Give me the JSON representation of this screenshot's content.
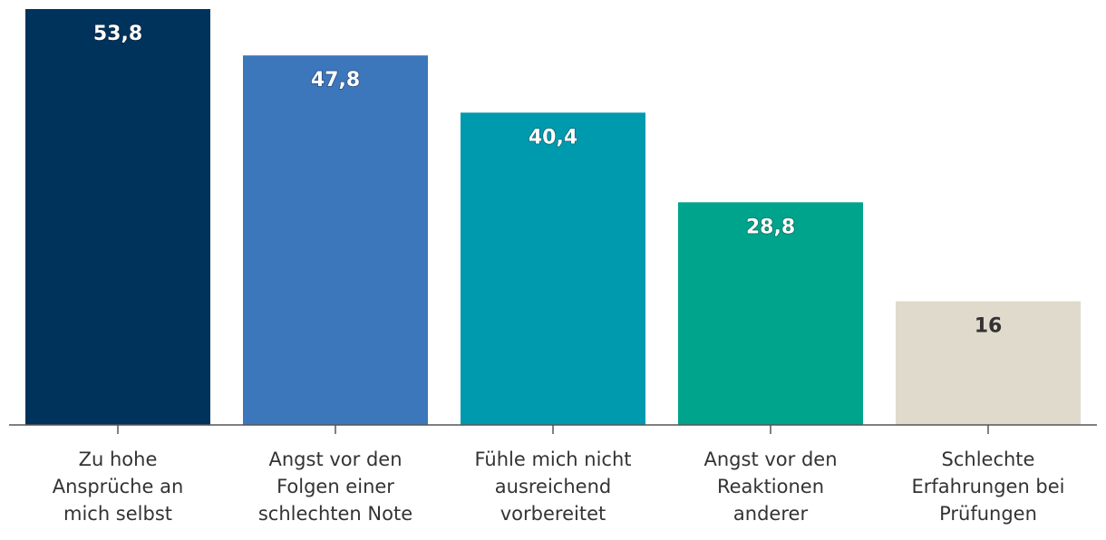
{
  "chart_data": {
    "type": "bar",
    "title": "",
    "xlabel": "",
    "ylabel": "",
    "ylim": [
      0,
      53.8
    ],
    "grid": false,
    "categories": [
      [
        "Zu hohe",
        "Ansprüche an",
        "mich selbst"
      ],
      [
        "Angst vor den",
        "Folgen einer",
        "schlechten Note"
      ],
      [
        "Fühle mich nicht",
        "ausreichend",
        "vorbereitet"
      ],
      [
        "Angst vor den",
        "Reaktionen",
        "anderer"
      ],
      [
        "Schlechte",
        "Erfahrungen bei",
        "Prüfungen"
      ]
    ],
    "values": [
      53.8,
      47.8,
      40.4,
      28.8,
      16
    ],
    "value_labels": [
      "53,8",
      "47,8",
      "40,4",
      "28,8",
      "16"
    ],
    "colors": [
      "#00335c",
      "#3c76bb",
      "#009aaf",
      "#00a38c",
      "#e0dacd"
    ],
    "label_colors": [
      "#ffffff",
      "#ffffff",
      "#ffffff",
      "#ffffff",
      "#333333"
    ]
  }
}
